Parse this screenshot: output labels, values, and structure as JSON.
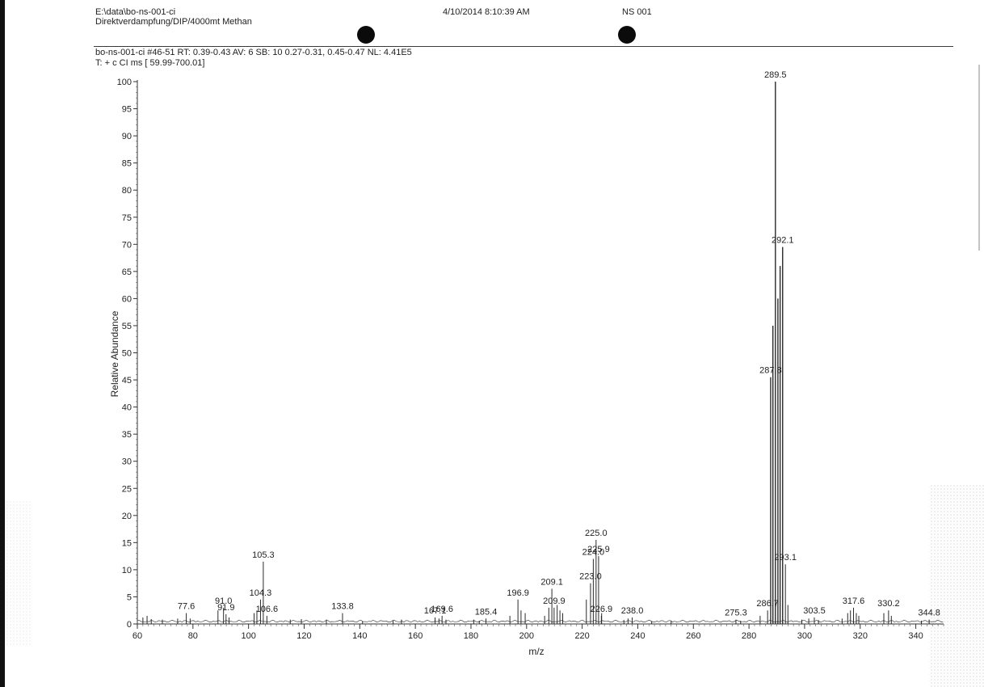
{
  "header": {
    "path": "E:\\data\\bo-ns-001-ci",
    "method": "Direktverdampfung/DIP/4000mt Methan",
    "datetime": "4/10/2014 8:10:39 AM",
    "sample": "NS 001",
    "scan_info": "bo-ns-001-ci #46-51  RT: 0.39-0.43  AV: 6  SB: 10  0.27-0.31, 0.45-0.47  NL: 4.41E5",
    "filter": "T: + c CI ms [ 59.99-700.01]"
  },
  "chart_data": {
    "type": "bar",
    "title": "",
    "xlabel": "m/z",
    "ylabel": "Relative Abundance",
    "xlim": [
      60,
      350
    ],
    "ylim": [
      0,
      100
    ],
    "x_ticks": [
      60,
      80,
      100,
      120,
      140,
      160,
      180,
      200,
      220,
      240,
      260,
      280,
      300,
      320,
      340
    ],
    "y_ticks": [
      0,
      5,
      10,
      15,
      20,
      25,
      30,
      35,
      40,
      45,
      50,
      55,
      60,
      65,
      70,
      75,
      80,
      85,
      90,
      95,
      100
    ],
    "grid": false,
    "legend": "none",
    "peaks": [
      {
        "mz": 62.0,
        "abundance": 1.2
      },
      {
        "mz": 63.5,
        "abundance": 1.5
      },
      {
        "mz": 65.0,
        "abundance": 0.9
      },
      {
        "mz": 69.0,
        "abundance": 0.8
      },
      {
        "mz": 74.5,
        "abundance": 1.0
      },
      {
        "mz": 77.6,
        "abundance": 2.0,
        "label": "77.6"
      },
      {
        "mz": 79.0,
        "abundance": 1.0
      },
      {
        "mz": 89.0,
        "abundance": 2.5
      },
      {
        "mz": 91.0,
        "abundance": 3.0,
        "label": "91.0"
      },
      {
        "mz": 91.9,
        "abundance": 1.8,
        "label": "91.9"
      },
      {
        "mz": 93.0,
        "abundance": 1.2
      },
      {
        "mz": 102.0,
        "abundance": 2.0
      },
      {
        "mz": 103.0,
        "abundance": 2.5
      },
      {
        "mz": 104.3,
        "abundance": 4.5,
        "label": "104.3"
      },
      {
        "mz": 105.3,
        "abundance": 11.5,
        "label": "105.3"
      },
      {
        "mz": 106.6,
        "abundance": 1.5,
        "label": "106.6"
      },
      {
        "mz": 115.0,
        "abundance": 0.8
      },
      {
        "mz": 119.0,
        "abundance": 0.9
      },
      {
        "mz": 128.0,
        "abundance": 0.8
      },
      {
        "mz": 133.8,
        "abundance": 2.0,
        "label": "133.8"
      },
      {
        "mz": 141.0,
        "abundance": 0.5
      },
      {
        "mz": 152.0,
        "abundance": 0.7
      },
      {
        "mz": 155.0,
        "abundance": 0.8
      },
      {
        "mz": 167.1,
        "abundance": 1.2,
        "label": "167.1"
      },
      {
        "mz": 168.5,
        "abundance": 1.0
      },
      {
        "mz": 169.6,
        "abundance": 1.5,
        "label": "169.6"
      },
      {
        "mz": 171.0,
        "abundance": 0.8
      },
      {
        "mz": 181.0,
        "abundance": 0.8
      },
      {
        "mz": 183.0,
        "abundance": 0.6
      },
      {
        "mz": 185.4,
        "abundance": 1.0,
        "label": "185.4"
      },
      {
        "mz": 194.0,
        "abundance": 1.5
      },
      {
        "mz": 196.9,
        "abundance": 4.5,
        "label": "196.9"
      },
      {
        "mz": 198.0,
        "abundance": 2.5
      },
      {
        "mz": 199.5,
        "abundance": 2.0
      },
      {
        "mz": 206.5,
        "abundance": 1.5
      },
      {
        "mz": 208.0,
        "abundance": 3.0
      },
      {
        "mz": 209.1,
        "abundance": 6.5,
        "label": "209.1"
      },
      {
        "mz": 209.9,
        "abundance": 3.0,
        "label": "209.9"
      },
      {
        "mz": 211.0,
        "abundance": 3.5
      },
      {
        "mz": 212.0,
        "abundance": 2.5
      },
      {
        "mz": 213.0,
        "abundance": 2.0
      },
      {
        "mz": 221.5,
        "abundance": 4.5
      },
      {
        "mz": 223.0,
        "abundance": 7.5,
        "label": "223.0"
      },
      {
        "mz": 224.0,
        "abundance": 12.0,
        "label": "224.0"
      },
      {
        "mz": 225.0,
        "abundance": 15.5,
        "label": "225.0"
      },
      {
        "mz": 225.9,
        "abundance": 12.5,
        "label": "225.9"
      },
      {
        "mz": 227.0,
        "abundance": 2.0
      },
      {
        "mz": 226.9,
        "abundance": 1.5,
        "label": "226.9"
      },
      {
        "mz": 235.0,
        "abundance": 0.7
      },
      {
        "mz": 236.5,
        "abundance": 1.0
      },
      {
        "mz": 238.0,
        "abundance": 1.2,
        "label": "238.0"
      },
      {
        "mz": 245.0,
        "abundance": 0.5
      },
      {
        "mz": 252.0,
        "abundance": 0.6
      },
      {
        "mz": 275.3,
        "abundance": 0.8,
        "label": "275.3"
      },
      {
        "mz": 277.0,
        "abundance": 0.6
      },
      {
        "mz": 284.0,
        "abundance": 1.5
      },
      {
        "mz": 286.7,
        "abundance": 2.5,
        "label": "286.7"
      },
      {
        "mz": 287.8,
        "abundance": 45.5,
        "label": "287.8"
      },
      {
        "mz": 288.6,
        "abundance": 55.0
      },
      {
        "mz": 289.5,
        "abundance": 100.0,
        "label": "289.5"
      },
      {
        "mz": 290.4,
        "abundance": 60.0
      },
      {
        "mz": 291.2,
        "abundance": 66.0
      },
      {
        "mz": 292.1,
        "abundance": 69.5,
        "label": "292.1"
      },
      {
        "mz": 293.1,
        "abundance": 11.0,
        "label": "293.1"
      },
      {
        "mz": 294.0,
        "abundance": 3.5
      },
      {
        "mz": 299.0,
        "abundance": 0.8
      },
      {
        "mz": 301.5,
        "abundance": 1.0
      },
      {
        "mz": 303.5,
        "abundance": 1.2,
        "label": "303.5"
      },
      {
        "mz": 305.0,
        "abundance": 0.7
      },
      {
        "mz": 313.5,
        "abundance": 1.0
      },
      {
        "mz": 315.5,
        "abundance": 2.0
      },
      {
        "mz": 316.5,
        "abundance": 2.5
      },
      {
        "mz": 317.6,
        "abundance": 3.0,
        "label": "317.6"
      },
      {
        "mz": 318.6,
        "abundance": 2.0
      },
      {
        "mz": 319.5,
        "abundance": 1.5
      },
      {
        "mz": 328.5,
        "abundance": 2.0
      },
      {
        "mz": 330.2,
        "abundance": 2.5,
        "label": "330.2"
      },
      {
        "mz": 331.2,
        "abundance": 1.5
      },
      {
        "mz": 342.0,
        "abundance": 0.6
      },
      {
        "mz": 344.8,
        "abundance": 0.8,
        "label": "344.8"
      }
    ]
  }
}
